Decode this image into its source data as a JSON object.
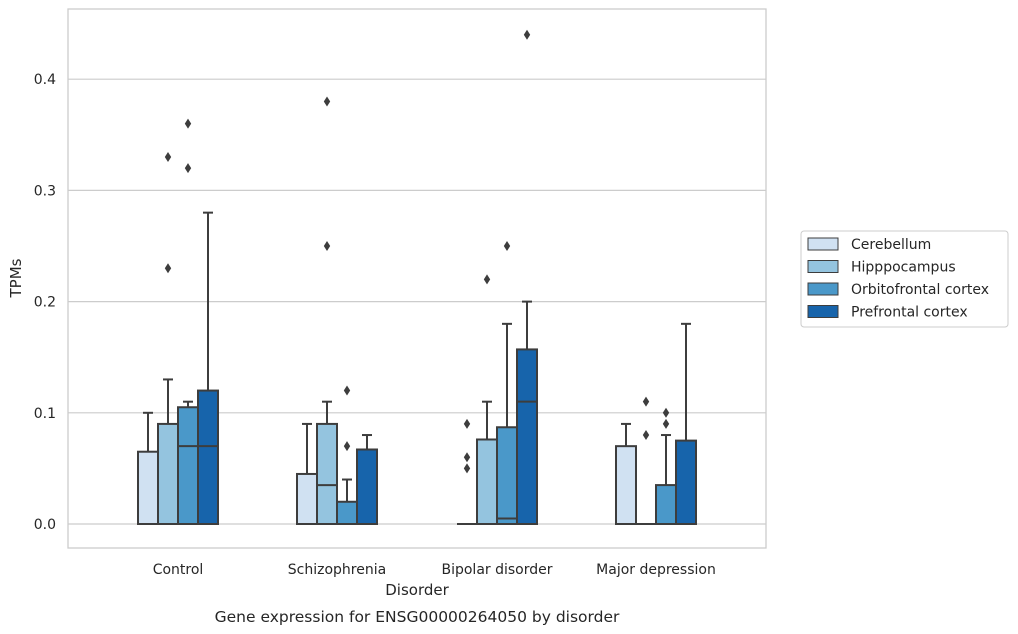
{
  "chart_data": {
    "type": "box",
    "caption": "Gene expression for ENSG00000264050 by disorder",
    "xlabel": "Disorder",
    "ylabel": "TPMs",
    "ylim": [
      -0.022,
      0.465
    ],
    "yticks": [
      "0.0",
      "0.1",
      "0.2",
      "0.3",
      "0.4"
    ],
    "grid": true,
    "legend_position": "right",
    "categories": [
      "Control",
      "Schizophrenia",
      "Bipolar disorder",
      "Major depression"
    ],
    "series": [
      {
        "name": "Cerebellum",
        "color": "#d0e1f2",
        "boxes": [
          {
            "q1": 0.0,
            "median": 0.0,
            "q3": 0.065,
            "whisker_low": 0.0,
            "whisker_high": 0.1,
            "outliers": []
          },
          {
            "q1": 0.0,
            "median": 0.0,
            "q3": 0.045,
            "whisker_low": 0.0,
            "whisker_high": 0.09,
            "outliers": []
          },
          {
            "q1": 0.0,
            "median": 0.0,
            "q3": 0.0,
            "whisker_low": 0.0,
            "whisker_high": 0.0,
            "outliers": []
          },
          {
            "q1": 0.0,
            "median": 0.0,
            "q3": 0.07,
            "whisker_low": 0.0,
            "whisker_high": 0.09,
            "outliers": []
          }
        ]
      },
      {
        "name": "Hipppocampus",
        "color": "#94c4df",
        "boxes": [
          {
            "q1": 0.0,
            "median": 0.0,
            "q3": 0.09,
            "whisker_low": 0.0,
            "whisker_high": 0.13,
            "outliers": [
              0.23,
              0.33
            ]
          },
          {
            "q1": 0.0,
            "median": 0.035,
            "q3": 0.09,
            "whisker_low": 0.0,
            "whisker_high": 0.11,
            "outliers": [
              0.25,
              0.38
            ]
          },
          {
            "q1": 0.0,
            "median": 0.0,
            "q3": 0.076,
            "whisker_low": 0.0,
            "whisker_high": 0.11,
            "outliers": [
              0.22
            ]
          },
          {
            "q1": 0.0,
            "median": 0.0,
            "q3": 0.0,
            "whisker_low": 0.0,
            "whisker_high": 0.0,
            "outliers": [
              0.08,
              0.11
            ]
          }
        ]
      },
      {
        "name": "Orbitofrontal cortex",
        "color": "#4a98c9",
        "boxes": [
          {
            "q1": 0.0,
            "median": 0.07,
            "q3": 0.105,
            "whisker_low": 0.0,
            "whisker_high": 0.11,
            "outliers": [
              0.32,
              0.36
            ]
          },
          {
            "q1": 0.0,
            "median": 0.0,
            "q3": 0.02,
            "whisker_low": 0.0,
            "whisker_high": 0.04,
            "outliers": [
              0.07,
              0.12
            ]
          },
          {
            "q1": 0.0,
            "median": 0.005,
            "q3": 0.087,
            "whisker_low": 0.0,
            "whisker_high": 0.18,
            "outliers": [
              0.25
            ]
          },
          {
            "q1": 0.0,
            "median": 0.0,
            "q3": 0.035,
            "whisker_low": 0.0,
            "whisker_high": 0.08,
            "outliers": [
              0.09,
              0.1
            ]
          }
        ]
      },
      {
        "name": "Prefrontal cortex",
        "color": "#1764ab",
        "boxes": [
          {
            "q1": 0.0,
            "median": 0.07,
            "q3": 0.12,
            "whisker_low": 0.0,
            "whisker_high": 0.28,
            "outliers": []
          },
          {
            "q1": 0.0,
            "median": 0.0,
            "q3": 0.067,
            "whisker_low": 0.0,
            "whisker_high": 0.08,
            "outliers": []
          },
          {
            "q1": 0.0,
            "median": 0.11,
            "q3": 0.157,
            "whisker_low": 0.0,
            "whisker_high": 0.2,
            "outliers": [
              0.44
            ]
          },
          {
            "q1": 0.0,
            "median": 0.0,
            "q3": 0.075,
            "whisker_low": 0.0,
            "whisker_high": 0.18,
            "outliers": []
          }
        ]
      }
    ],
    "extra_outliers": [
      {
        "category": "Bipolar disorder",
        "series": "Cerebellum",
        "values": [
          0.05,
          0.06,
          0.09
        ]
      }
    ]
  }
}
